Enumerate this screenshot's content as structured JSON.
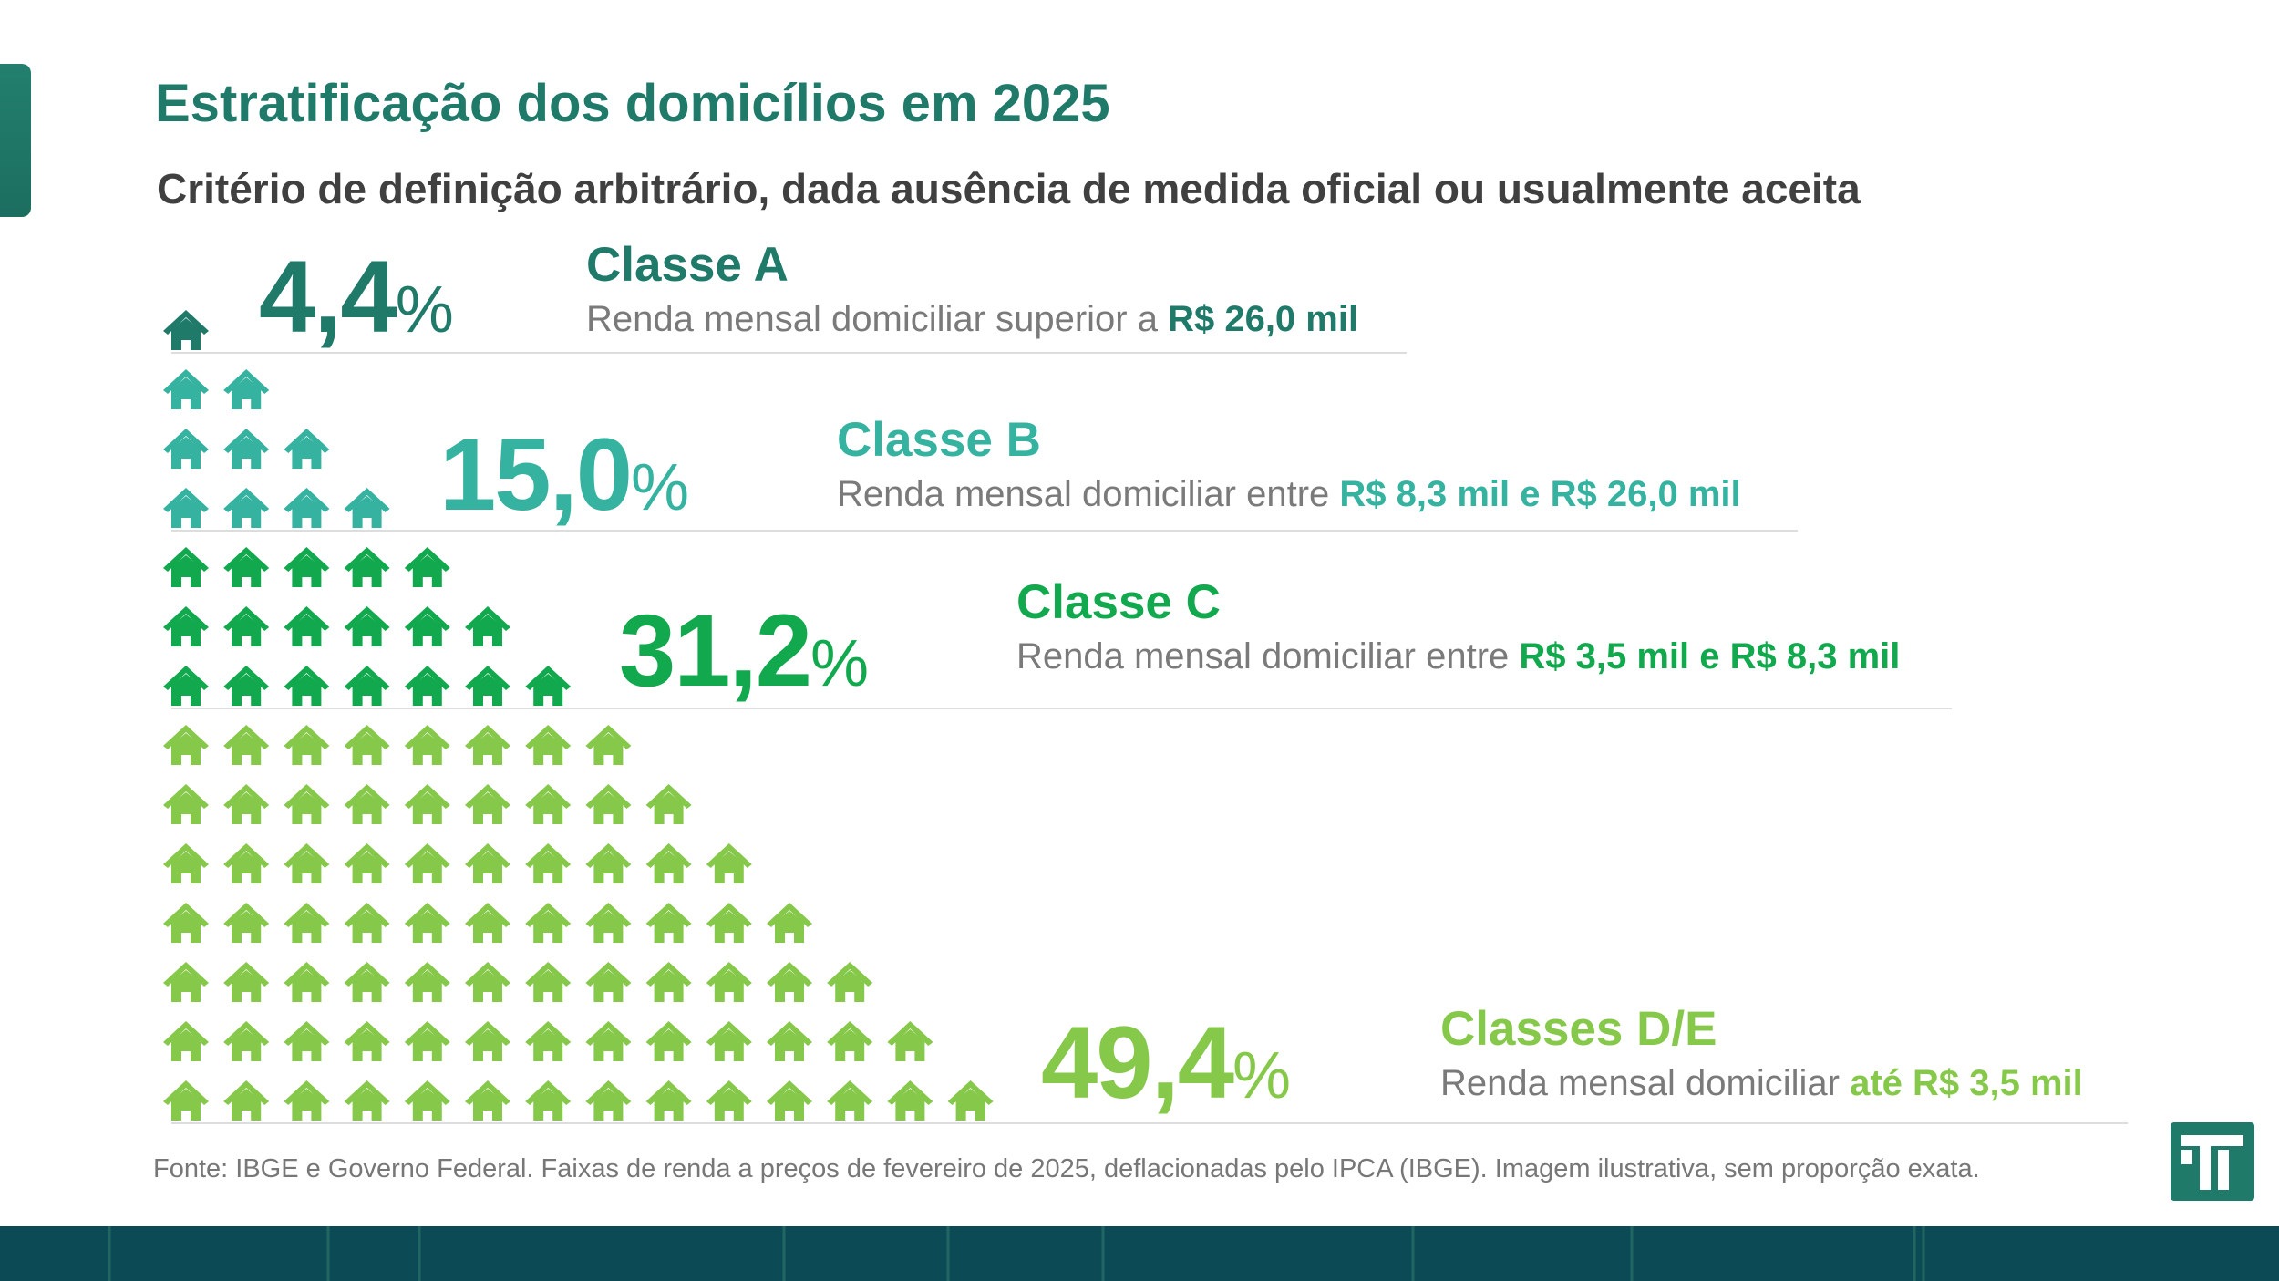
{
  "title": "Estratificação dos domicílios em 2025",
  "subtitle": "Critério de definição arbitrário, dada ausência de medida oficial ou usualmente aceita",
  "source": "Fonte: IBGE e Governo Federal. Faixas de renda a preços de fevereiro de 2025, deflacionadas pelo IPCA (IBGE). Imagem ilustrativa, sem proporção exata.",
  "percent_sign": "%",
  "colors": {
    "classe_a": "#1f7a6a",
    "classe_b": "#35b3a0",
    "classe_c": "#12a94e",
    "classe_de": "#86c84a",
    "title": "#1f7a6a",
    "subtitle": "#404040"
  },
  "icon": "house-icon",
  "chart_data": {
    "type": "pictogram",
    "series": [
      {
        "class": "Classe A",
        "percent": "4,4",
        "value": 4.4,
        "description": "Renda mensal domiciliar superior a",
        "range": "R$ 26,0 mil",
        "icons_per_row": [
          1
        ]
      },
      {
        "class": "Classe B",
        "percent": "15,0",
        "value": 15.0,
        "description": "Renda mensal domiciliar entre",
        "range": "R$ 8,3 mil e R$ 26,0 mil",
        "icons_per_row": [
          2,
          3,
          4
        ]
      },
      {
        "class": "Classe C",
        "percent": "31,2",
        "value": 31.2,
        "description": "Renda mensal domiciliar entre",
        "range": "R$ 3,5 mil e R$ 8,3 mil",
        "icons_per_row": [
          5,
          6,
          7
        ]
      },
      {
        "class": "Classes D/E",
        "percent": "49,4",
        "value": 49.4,
        "description": "Renda mensal domiciliar",
        "range": "até R$ 3,5 mil",
        "icons_per_row": [
          8,
          9,
          10,
          11,
          12,
          13,
          14
        ]
      }
    ]
  }
}
